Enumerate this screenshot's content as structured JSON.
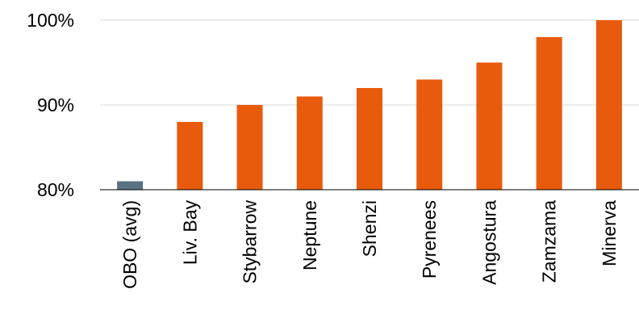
{
  "chart_data": {
    "type": "bar",
    "title": "",
    "xlabel": "",
    "ylabel": "",
    "categories": [
      "OBO (avg)",
      "Liv.  Bay",
      "Stybarrow",
      "Neptune",
      "Shenzi",
      "Pyrenees",
      "Angostura",
      "Zamzama",
      "Minerva"
    ],
    "values": [
      81,
      88,
      90,
      91,
      92,
      93,
      95,
      98,
      100
    ],
    "ylim": [
      80,
      100
    ],
    "yticks": [
      80,
      90,
      100
    ],
    "ytick_labels": [
      "80%",
      "90%",
      "100%"
    ],
    "grid": true,
    "legend": "none",
    "colors": {
      "highlight": "#5a7384",
      "bar": "#e85b0c",
      "grid": "#d9d9d9",
      "axis": "#000000"
    },
    "highlight_index": 0
  }
}
